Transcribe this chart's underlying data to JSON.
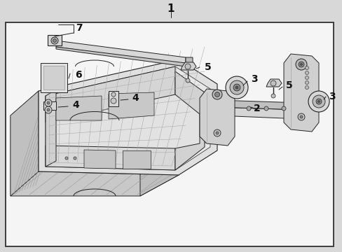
{
  "bg_color": "#d8d8d8",
  "box_bg": "#f5f5f5",
  "line_color": "#222222",
  "part_fill": "#e8e8e8",
  "part_dark": "#b0b0b0",
  "part_mid": "#cccccc",
  "white_fill": "#f0f0f0",
  "border_lw": 1.2,
  "part_lw": 0.7
}
